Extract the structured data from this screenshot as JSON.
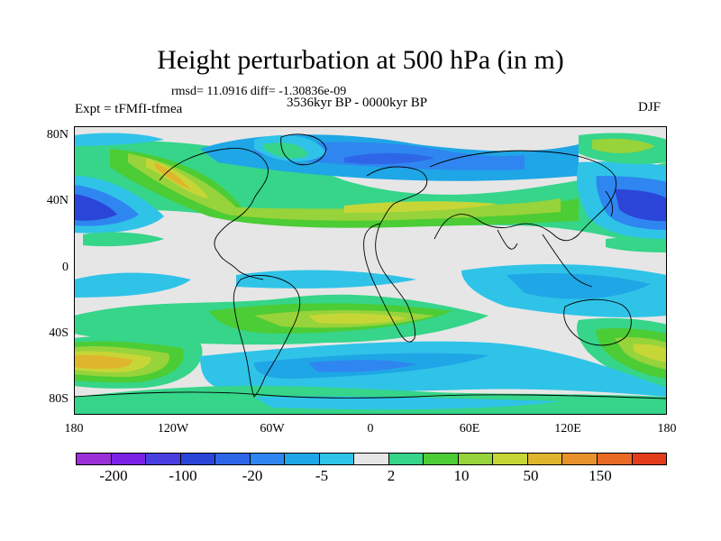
{
  "title": "Height perturbation at 500 hPa (in m)",
  "rmsd_line": "rmsd= 11.0916 diff= -1.30836e-09",
  "period": "3536kyr BP - 0000kyr BP",
  "experiment": "Expt = tFMfI-tfmea",
  "season": "DJF",
  "lat_ticks": [
    "80N",
    "40N",
    "0",
    "40S",
    "80S"
  ],
  "lon_ticks": [
    "180",
    "120W",
    "60W",
    "0",
    "60E",
    "120E",
    "180"
  ],
  "colorbar": {
    "colors": [
      "#9b30d8",
      "#7a22e6",
      "#4b3ee0",
      "#2b45d8",
      "#2f66e8",
      "#2f86f0",
      "#1fa6e6",
      "#2fc3e8",
      "#e6e6e6",
      "#36d58a",
      "#4ccc35",
      "#97d33a",
      "#c7d637",
      "#e0b52e",
      "#e8922b",
      "#e86a25",
      "#e23c1c"
    ],
    "labels": [
      "-200",
      "-100",
      "-20",
      "-5",
      "2",
      "10",
      "50",
      "150"
    ]
  },
  "field_colors": {
    "neutral": "#e6e6e6",
    "lightblue": "#2fc3e8",
    "blue1": "#1fa6e6",
    "blue2": "#2f86f0",
    "blue3": "#2f66e8",
    "blue4": "#2b45d8",
    "teal": "#36d58a",
    "green": "#4ccc35",
    "lime": "#97d33a",
    "yellow": "#c7d637",
    "orange": "#e0b52e",
    "coast": "#000000"
  }
}
